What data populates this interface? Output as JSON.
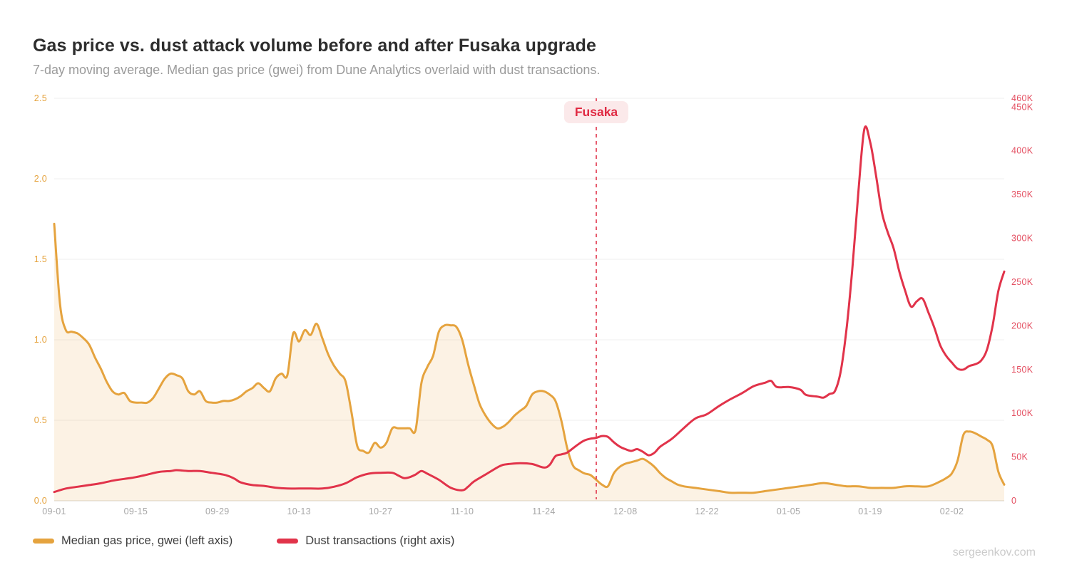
{
  "page": {
    "title": "Gas price vs. dust attack volume before and after Fusaka upgrade",
    "subtitle": "7-day moving average. Median gas price (gwei) from Dune Analytics overlaid with dust transactions.",
    "watermark": "sergeenkov.com"
  },
  "legend": {
    "items": [
      {
        "label": "Median gas price, gwei (left axis)",
        "color": "#E5A33E"
      },
      {
        "label": "Dust transactions (right axis)",
        "color": "#E1334A"
      }
    ]
  },
  "chart_data": {
    "type": "line",
    "title": "Gas price vs. dust attack volume before and after Fusaka upgrade",
    "subtitle": "7-day moving average. Median gas price (gwei) from Dune Analytics overlaid with dust transactions.",
    "grid": true,
    "legend_position": "bottom-left",
    "x_domain": [
      "09-01",
      "02-11"
    ],
    "x_ticks": [
      "09-01",
      "09-15",
      "09-29",
      "10-13",
      "10-27",
      "11-10",
      "11-24",
      "12-08",
      "12-22",
      "01-05",
      "01-19",
      "02-02"
    ],
    "left_axis": {
      "min": 0,
      "max": 2.5,
      "tick_labels": [
        "0.0",
        "0.5",
        "1.0",
        "1.5",
        "2.0",
        "2.5"
      ],
      "tick_values": [
        0,
        0.5,
        1.0,
        1.5,
        2.0,
        2.5
      ],
      "color": "#E5A33E"
    },
    "right_axis": {
      "min": 0,
      "max": 460000,
      "ticks": [
        {
          "value": 0,
          "label": "0"
        },
        {
          "value": 50000,
          "label": "50K"
        },
        {
          "value": 100000,
          "label": "100K"
        },
        {
          "value": 150000,
          "label": "150K"
        },
        {
          "value": 200000,
          "label": "200K"
        },
        {
          "value": 250000,
          "label": "250K"
        },
        {
          "value": 300000,
          "label": "300K"
        },
        {
          "value": 350000,
          "label": "350K"
        },
        {
          "value": 400000,
          "label": "400K"
        },
        {
          "value": 450000,
          "label": "450K"
        },
        {
          "value": 460000,
          "label": "460K"
        }
      ],
      "color": "#E45062"
    },
    "annotation": {
      "label": "Fusaka",
      "date": "12-03",
      "line_color": "#E1334A",
      "badge_bg": "#FBE9EA",
      "badge_text_color": "#E02A43"
    },
    "colors": {
      "grid": "#efefef",
      "axis_line": "#e6e3dd",
      "background": "#ffffff"
    },
    "series": [
      {
        "name": "Median gas price, gwei (left axis)",
        "axis": "left",
        "color": "#E5A33E",
        "fill": "rgba(231,166,64,0.14)",
        "points": [
          [
            "09-01",
            1.72
          ],
          [
            "09-02",
            1.22
          ],
          [
            "09-03",
            1.06
          ],
          [
            "09-04",
            1.05
          ],
          [
            "09-05",
            1.04
          ],
          [
            "09-06",
            1.01
          ],
          [
            "09-07",
            0.97
          ],
          [
            "09-08",
            0.89
          ],
          [
            "09-09",
            0.82
          ],
          [
            "09-10",
            0.74
          ],
          [
            "09-11",
            0.68
          ],
          [
            "09-12",
            0.66
          ],
          [
            "09-13",
            0.67
          ],
          [
            "09-14",
            0.62
          ],
          [
            "09-15",
            0.61
          ],
          [
            "09-16",
            0.61
          ],
          [
            "09-17",
            0.61
          ],
          [
            "09-18",
            0.64
          ],
          [
            "09-19",
            0.7
          ],
          [
            "09-20",
            0.76
          ],
          [
            "09-21",
            0.79
          ],
          [
            "09-22",
            0.78
          ],
          [
            "09-23",
            0.76
          ],
          [
            "09-24",
            0.68
          ],
          [
            "09-25",
            0.66
          ],
          [
            "09-26",
            0.68
          ],
          [
            "09-27",
            0.62
          ],
          [
            "09-28",
            0.61
          ],
          [
            "09-29",
            0.61
          ],
          [
            "09-30",
            0.62
          ],
          [
            "10-01",
            0.62
          ],
          [
            "10-02",
            0.63
          ],
          [
            "10-03",
            0.65
          ],
          [
            "10-04",
            0.68
          ],
          [
            "10-05",
            0.7
          ],
          [
            "10-06",
            0.73
          ],
          [
            "10-07",
            0.7
          ],
          [
            "10-08",
            0.68
          ],
          [
            "10-09",
            0.76
          ],
          [
            "10-10",
            0.79
          ],
          [
            "10-11",
            0.78
          ],
          [
            "10-12",
            1.04
          ],
          [
            "10-13",
            0.99
          ],
          [
            "10-14",
            1.06
          ],
          [
            "10-15",
            1.03
          ],
          [
            "10-16",
            1.1
          ],
          [
            "10-17",
            1.01
          ],
          [
            "10-18",
            0.91
          ],
          [
            "10-19",
            0.84
          ],
          [
            "10-20",
            0.79
          ],
          [
            "10-21",
            0.74
          ],
          [
            "10-22",
            0.55
          ],
          [
            "10-23",
            0.34
          ],
          [
            "10-24",
            0.31
          ],
          [
            "10-25",
            0.3
          ],
          [
            "10-26",
            0.36
          ],
          [
            "10-27",
            0.33
          ],
          [
            "10-28",
            0.36
          ],
          [
            "10-29",
            0.45
          ],
          [
            "10-30",
            0.45
          ],
          [
            "10-31",
            0.45
          ],
          [
            "11-01",
            0.45
          ],
          [
            "11-02",
            0.44
          ],
          [
            "11-03",
            0.73
          ],
          [
            "11-04",
            0.83
          ],
          [
            "11-05",
            0.9
          ],
          [
            "11-06",
            1.05
          ],
          [
            "11-07",
            1.09
          ],
          [
            "11-08",
            1.09
          ],
          [
            "11-09",
            1.08
          ],
          [
            "11-10",
            1.0
          ],
          [
            "11-11",
            0.85
          ],
          [
            "11-12",
            0.72
          ],
          [
            "11-13",
            0.6
          ],
          [
            "11-14",
            0.53
          ],
          [
            "11-15",
            0.48
          ],
          [
            "11-16",
            0.45
          ],
          [
            "11-17",
            0.46
          ],
          [
            "11-18",
            0.49
          ],
          [
            "11-19",
            0.53
          ],
          [
            "11-20",
            0.56
          ],
          [
            "11-21",
            0.59
          ],
          [
            "11-22",
            0.66
          ],
          [
            "11-23",
            0.68
          ],
          [
            "11-24",
            0.68
          ],
          [
            "11-25",
            0.66
          ],
          [
            "11-26",
            0.62
          ],
          [
            "11-27",
            0.5
          ],
          [
            "11-28",
            0.33
          ],
          [
            "11-29",
            0.22
          ],
          [
            "11-30",
            0.19
          ],
          [
            "12-01",
            0.17
          ],
          [
            "12-02",
            0.16
          ],
          [
            "12-03",
            0.13
          ],
          [
            "12-04",
            0.1
          ],
          [
            "12-05",
            0.09
          ],
          [
            "12-06",
            0.17
          ],
          [
            "12-07",
            0.21
          ],
          [
            "12-08",
            0.23
          ],
          [
            "12-09",
            0.24
          ],
          [
            "12-10",
            0.25
          ],
          [
            "12-11",
            0.26
          ],
          [
            "12-12",
            0.24
          ],
          [
            "12-13",
            0.21
          ],
          [
            "12-14",
            0.17
          ],
          [
            "12-15",
            0.14
          ],
          [
            "12-16",
            0.12
          ],
          [
            "12-17",
            0.1
          ],
          [
            "12-18",
            0.09
          ],
          [
            "12-20",
            0.08
          ],
          [
            "12-22",
            0.07
          ],
          [
            "12-24",
            0.06
          ],
          [
            "12-26",
            0.05
          ],
          [
            "12-28",
            0.05
          ],
          [
            "12-30",
            0.05
          ],
          [
            "01-01",
            0.06
          ],
          [
            "01-03",
            0.07
          ],
          [
            "01-05",
            0.08
          ],
          [
            "01-07",
            0.09
          ],
          [
            "01-09",
            0.1
          ],
          [
            "01-11",
            0.11
          ],
          [
            "01-13",
            0.1
          ],
          [
            "01-15",
            0.09
          ],
          [
            "01-17",
            0.09
          ],
          [
            "01-19",
            0.08
          ],
          [
            "01-21",
            0.08
          ],
          [
            "01-23",
            0.08
          ],
          [
            "01-25",
            0.09
          ],
          [
            "01-27",
            0.09
          ],
          [
            "01-29",
            0.09
          ],
          [
            "01-31",
            0.12
          ],
          [
            "02-01",
            0.14
          ],
          [
            "02-02",
            0.17
          ],
          [
            "02-03",
            0.25
          ],
          [
            "02-04",
            0.41
          ],
          [
            "02-05",
            0.43
          ],
          [
            "02-06",
            0.42
          ],
          [
            "02-07",
            0.4
          ],
          [
            "02-08",
            0.38
          ],
          [
            "02-09",
            0.34
          ],
          [
            "02-10",
            0.18
          ],
          [
            "02-11",
            0.1
          ]
        ]
      },
      {
        "name": "Dust transactions (right axis)",
        "axis": "right",
        "color": "#E1334A",
        "fill": null,
        "points": [
          [
            "09-01",
            10000
          ],
          [
            "09-03",
            14000
          ],
          [
            "09-05",
            16000
          ],
          [
            "09-07",
            18000
          ],
          [
            "09-09",
            20000
          ],
          [
            "09-11",
            23000
          ],
          [
            "09-13",
            25000
          ],
          [
            "09-15",
            27000
          ],
          [
            "09-17",
            30000
          ],
          [
            "09-19",
            33000
          ],
          [
            "09-21",
            34000
          ],
          [
            "09-22",
            35000
          ],
          [
            "09-24",
            34000
          ],
          [
            "09-26",
            34000
          ],
          [
            "09-28",
            32000
          ],
          [
            "09-30",
            30000
          ],
          [
            "10-01",
            28000
          ],
          [
            "10-02",
            25000
          ],
          [
            "10-03",
            21000
          ],
          [
            "10-05",
            18000
          ],
          [
            "10-07",
            17000
          ],
          [
            "10-09",
            15000
          ],
          [
            "10-11",
            14000
          ],
          [
            "10-13",
            14000
          ],
          [
            "10-15",
            14000
          ],
          [
            "10-17",
            14000
          ],
          [
            "10-19",
            16000
          ],
          [
            "10-21",
            20000
          ],
          [
            "10-23",
            27000
          ],
          [
            "10-25",
            31000
          ],
          [
            "10-27",
            32000
          ],
          [
            "10-29",
            32000
          ],
          [
            "10-30",
            29000
          ],
          [
            "10-31",
            26000
          ],
          [
            "11-01",
            27000
          ],
          [
            "11-02",
            30000
          ],
          [
            "11-03",
            34000
          ],
          [
            "11-04",
            31000
          ],
          [
            "11-06",
            24000
          ],
          [
            "11-08",
            15000
          ],
          [
            "11-10",
            12000
          ],
          [
            "11-11",
            16000
          ],
          [
            "11-12",
            22000
          ],
          [
            "11-14",
            30000
          ],
          [
            "11-16",
            38000
          ],
          [
            "11-17",
            41000
          ],
          [
            "11-18",
            42000
          ],
          [
            "11-20",
            43000
          ],
          [
            "11-22",
            42000
          ],
          [
            "11-24",
            38000
          ],
          [
            "11-25",
            41000
          ],
          [
            "11-26",
            51000
          ],
          [
            "11-27",
            53000
          ],
          [
            "11-28",
            55000
          ],
          [
            "11-29",
            60000
          ],
          [
            "11-30",
            65000
          ],
          [
            "12-01",
            69000
          ],
          [
            "12-02",
            71000
          ],
          [
            "12-03",
            72000
          ],
          [
            "12-04",
            74000
          ],
          [
            "12-05",
            73000
          ],
          [
            "12-06",
            67000
          ],
          [
            "12-07",
            62000
          ],
          [
            "12-08",
            59000
          ],
          [
            "12-09",
            57000
          ],
          [
            "12-10",
            59000
          ],
          [
            "12-11",
            56000
          ],
          [
            "12-12",
            52000
          ],
          [
            "12-13",
            55000
          ],
          [
            "12-14",
            62000
          ],
          [
            "12-16",
            71000
          ],
          [
            "12-18",
            83000
          ],
          [
            "12-20",
            94000
          ],
          [
            "12-22",
            99000
          ],
          [
            "12-24",
            108000
          ],
          [
            "12-26",
            116000
          ],
          [
            "12-28",
            123000
          ],
          [
            "12-30",
            131000
          ],
          [
            "01-01",
            135000
          ],
          [
            "01-02",
            137000
          ],
          [
            "01-03",
            130000
          ],
          [
            "01-05",
            130000
          ],
          [
            "01-07",
            127000
          ],
          [
            "01-08",
            121000
          ],
          [
            "01-10",
            119000
          ],
          [
            "01-11",
            118000
          ],
          [
            "01-12",
            122000
          ],
          [
            "01-13",
            126000
          ],
          [
            "01-14",
            150000
          ],
          [
            "01-15",
            200000
          ],
          [
            "01-16",
            270000
          ],
          [
            "01-17",
            355000
          ],
          [
            "01-18",
            425000
          ],
          [
            "01-19",
            410000
          ],
          [
            "01-20",
            372000
          ],
          [
            "01-21",
            330000
          ],
          [
            "01-22",
            307000
          ],
          [
            "01-23",
            289000
          ],
          [
            "01-24",
            262000
          ],
          [
            "01-25",
            240000
          ],
          [
            "01-26",
            222000
          ],
          [
            "01-27",
            228000
          ],
          [
            "01-28",
            231000
          ],
          [
            "01-29",
            215000
          ],
          [
            "01-30",
            198000
          ],
          [
            "01-31",
            178000
          ],
          [
            "02-01",
            166000
          ],
          [
            "02-02",
            158000
          ],
          [
            "02-03",
            151000
          ],
          [
            "02-04",
            150000
          ],
          [
            "02-05",
            154000
          ],
          [
            "02-06",
            156000
          ],
          [
            "02-07",
            160000
          ],
          [
            "02-08",
            172000
          ],
          [
            "02-09",
            200000
          ],
          [
            "02-10",
            240000
          ],
          [
            "02-11",
            262000
          ]
        ]
      }
    ]
  }
}
